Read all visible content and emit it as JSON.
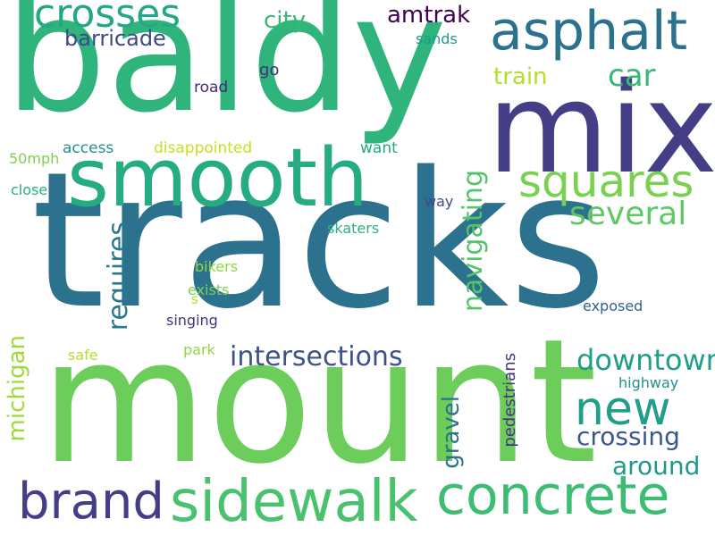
{
  "words": [
    {
      "text": "tracks",
      "color": "#2c728e",
      "orientation": "horizontal"
    },
    {
      "text": "mount",
      "color": "#6ccd5a",
      "orientation": "horizontal"
    },
    {
      "text": "baldy",
      "color": "#2fb47c",
      "orientation": "horizontal"
    },
    {
      "text": "mix",
      "color": "#433e85",
      "orientation": "horizontal"
    },
    {
      "text": "smooth",
      "color": "#25ac82",
      "orientation": "horizontal"
    },
    {
      "text": "concrete",
      "color": "#3dbc74",
      "orientation": "horizontal"
    },
    {
      "text": "sidewalk",
      "color": "#4ac16d",
      "orientation": "horizontal"
    },
    {
      "text": "asphalt",
      "color": "#2c728e",
      "orientation": "horizontal"
    },
    {
      "text": "brand",
      "color": "#433e85",
      "orientation": "horizontal"
    },
    {
      "text": "new",
      "color": "#1f9e89",
      "orientation": "horizontal"
    },
    {
      "text": "squares",
      "color": "#7ad151",
      "orientation": "horizontal"
    },
    {
      "text": "crosses",
      "color": "#22a884",
      "orientation": "horizontal"
    },
    {
      "text": "several",
      "color": "#5ec962",
      "orientation": "horizontal"
    },
    {
      "text": "downtown",
      "color": "#1f9e89",
      "orientation": "horizontal"
    },
    {
      "text": "intersections",
      "color": "#3b528b",
      "orientation": "horizontal"
    },
    {
      "text": "crossing",
      "color": "#38588c",
      "orientation": "horizontal"
    },
    {
      "text": "around",
      "color": "#1f9a8a",
      "orientation": "horizontal"
    },
    {
      "text": "navigating",
      "color": "#54c568",
      "orientation": "vertical"
    },
    {
      "text": "requires",
      "color": "#2a788e",
      "orientation": "vertical"
    },
    {
      "text": "michigan",
      "color": "#a0da39",
      "orientation": "vertical"
    },
    {
      "text": "gravel",
      "color": "#2c728e",
      "orientation": "vertical"
    },
    {
      "text": "pedestrians",
      "color": "#46327e",
      "orientation": "vertical"
    },
    {
      "text": "amtrak",
      "color": "#440154",
      "orientation": "horizontal"
    },
    {
      "text": "city",
      "color": "#35b779",
      "orientation": "horizontal"
    },
    {
      "text": "car",
      "color": "#35b779",
      "orientation": "horizontal"
    },
    {
      "text": "train",
      "color": "#b5de2b",
      "orientation": "horizontal"
    },
    {
      "text": "barricade",
      "color": "#3e4989",
      "orientation": "horizontal"
    },
    {
      "text": "sands",
      "color": "#1f9a8a",
      "orientation": "horizontal"
    },
    {
      "text": "go",
      "color": "#472d7b",
      "orientation": "horizontal"
    },
    {
      "text": "road",
      "color": "#482878",
      "orientation": "horizontal"
    },
    {
      "text": "access",
      "color": "#21918c",
      "orientation": "horizontal"
    },
    {
      "text": "disappointed",
      "color": "#c8e020",
      "orientation": "horizontal"
    },
    {
      "text": "want",
      "color": "#22a884",
      "orientation": "horizontal"
    },
    {
      "text": "50mph",
      "color": "#7ad151",
      "orientation": "horizontal"
    },
    {
      "text": "close",
      "color": "#29af7f",
      "orientation": "horizontal"
    },
    {
      "text": "way",
      "color": "#3e4a89",
      "orientation": "horizontal"
    },
    {
      "text": "skaters",
      "color": "#2db27d",
      "orientation": "horizontal"
    },
    {
      "text": "bikers",
      "color": "#8fd744",
      "orientation": "horizontal"
    },
    {
      "text": "exists",
      "color": "#7ad151",
      "orientation": "horizontal"
    },
    {
      "text": "s",
      "color": "#b5de2b",
      "orientation": "horizontal"
    },
    {
      "text": "singing",
      "color": "#46337e",
      "orientation": "horizontal"
    },
    {
      "text": "exposed",
      "color": "#33638d",
      "orientation": "horizontal"
    },
    {
      "text": "safe",
      "color": "#b5de2b",
      "orientation": "horizontal"
    },
    {
      "text": "park",
      "color": "#8fd744",
      "orientation": "horizontal"
    },
    {
      "text": "highway",
      "color": "#21918c",
      "orientation": "horizontal"
    }
  ]
}
